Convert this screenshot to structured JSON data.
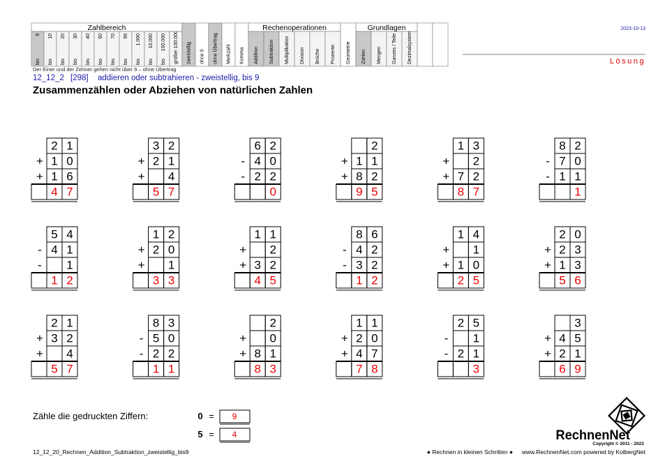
{
  "header": {
    "sections": [
      {
        "title": "Zahlbereich",
        "columns": [
          {
            "prefix": "bis",
            "label": "9",
            "active": true
          },
          {
            "prefix": "bis",
            "label": "10"
          },
          {
            "prefix": "bis",
            "label": "20"
          },
          {
            "prefix": "bis",
            "label": "30"
          },
          {
            "prefix": "bis",
            "label": "40"
          },
          {
            "prefix": "bis",
            "label": "50"
          },
          {
            "prefix": "bis",
            "label": "70"
          },
          {
            "prefix": "bis",
            "label": "99"
          },
          {
            "prefix": "bis",
            "label": "1.000"
          },
          {
            "prefix": "bis",
            "label": "10.000"
          },
          {
            "prefix": "bis",
            "label": "100.000"
          },
          {
            "label": "größer 100.000"
          }
        ]
      },
      {
        "columns": [
          {
            "label": "zweistellig",
            "active": true
          },
          {
            "label": "ohne 0"
          },
          {
            "label": "ohne Übertrag",
            "active": true
          },
          {
            "label": "Merkzahl"
          },
          {
            "label": "Komma"
          }
        ]
      },
      {
        "title": "Rechenoperationen",
        "columns": [
          {
            "label": "Addition",
            "active": true
          },
          {
            "label": "Subtraktion",
            "active": true
          },
          {
            "label": "Multiplikation"
          },
          {
            "label": "Division"
          },
          {
            "label": "Brüche"
          },
          {
            "label": "Prozente"
          }
        ]
      },
      {
        "columns": [
          {
            "label": "Geometrie"
          }
        ]
      },
      {
        "title": "Grundlagen",
        "columns": [
          {
            "label": "Zahlen",
            "active": true
          },
          {
            "label": "Mengen"
          },
          {
            "label": "Ganzes / Teile"
          },
          {
            "label": "Dezimalsystem"
          }
        ]
      }
    ],
    "date": "2023-10-13",
    "solution": "Lösung",
    "note": "Der Einer und der Zehner gehen nicht über 9 – ohne Übertrag",
    "code": "12_12_2",
    "number": "[298]",
    "topic": "addieren oder subtrahieren - zweistellig, bis 9",
    "title": "Zusammenzählen oder Abziehen von natürlichen Zahlen"
  },
  "problems": [
    {
      "lines": [
        {
          "digits": [
            2,
            1
          ]
        },
        {
          "op": "+",
          "digits": [
            1,
            0
          ]
        },
        {
          "op": "+",
          "digits": [
            1,
            6
          ]
        }
      ],
      "result": [
        4,
        7
      ]
    },
    {
      "lines": [
        {
          "digits": [
            3,
            2
          ]
        },
        {
          "op": "+",
          "digits": [
            2,
            1
          ]
        },
        {
          "op": "+",
          "digits": [
            null,
            4
          ]
        }
      ],
      "result": [
        5,
        7
      ]
    },
    {
      "lines": [
        {
          "digits": [
            6,
            2
          ]
        },
        {
          "op": "-",
          "digits": [
            4,
            0
          ]
        },
        {
          "op": "-",
          "digits": [
            2,
            2
          ]
        }
      ],
      "result": [
        null,
        0
      ]
    },
    {
      "lines": [
        {
          "digits": [
            null,
            2
          ]
        },
        {
          "op": "+",
          "digits": [
            1,
            1
          ]
        },
        {
          "op": "+",
          "digits": [
            8,
            2
          ]
        }
      ],
      "result": [
        9,
        5
      ]
    },
    {
      "lines": [
        {
          "digits": [
            1,
            3
          ]
        },
        {
          "op": "+",
          "digits": [
            null,
            2
          ]
        },
        {
          "op": "+",
          "digits": [
            7,
            2
          ]
        }
      ],
      "result": [
        8,
        7
      ]
    },
    {
      "lines": [
        {
          "digits": [
            8,
            2
          ]
        },
        {
          "op": "-",
          "digits": [
            7,
            0
          ]
        },
        {
          "op": "-",
          "digits": [
            1,
            1
          ]
        }
      ],
      "result": [
        null,
        1
      ]
    },
    {
      "lines": [
        {
          "digits": [
            5,
            4
          ]
        },
        {
          "op": "-",
          "digits": [
            4,
            1
          ]
        },
        {
          "op": "-",
          "digits": [
            null,
            1
          ]
        }
      ],
      "result": [
        1,
        2
      ]
    },
    {
      "lines": [
        {
          "digits": [
            1,
            2
          ]
        },
        {
          "op": "+",
          "digits": [
            2,
            0
          ]
        },
        {
          "op": "+",
          "digits": [
            null,
            1
          ]
        }
      ],
      "result": [
        3,
        3
      ]
    },
    {
      "lines": [
        {
          "digits": [
            1,
            1
          ]
        },
        {
          "op": "+",
          "digits": [
            null,
            2
          ]
        },
        {
          "op": "+",
          "digits": [
            3,
            2
          ]
        }
      ],
      "result": [
        4,
        5
      ]
    },
    {
      "lines": [
        {
          "digits": [
            8,
            6
          ]
        },
        {
          "op": "-",
          "digits": [
            4,
            2
          ]
        },
        {
          "op": "-",
          "digits": [
            3,
            2
          ]
        }
      ],
      "result": [
        1,
        2
      ]
    },
    {
      "lines": [
        {
          "digits": [
            1,
            4
          ]
        },
        {
          "op": "+",
          "digits": [
            null,
            1
          ]
        },
        {
          "op": "+",
          "digits": [
            1,
            0
          ]
        }
      ],
      "result": [
        2,
        5
      ]
    },
    {
      "lines": [
        {
          "digits": [
            2,
            0
          ]
        },
        {
          "op": "+",
          "digits": [
            2,
            3
          ]
        },
        {
          "op": "+",
          "digits": [
            1,
            3
          ]
        }
      ],
      "result": [
        5,
        6
      ]
    },
    {
      "lines": [
        {
          "digits": [
            2,
            1
          ]
        },
        {
          "op": "+",
          "digits": [
            3,
            2
          ]
        },
        {
          "op": "+",
          "digits": [
            null,
            4
          ]
        }
      ],
      "result": [
        5,
        7
      ]
    },
    {
      "lines": [
        {
          "digits": [
            8,
            3
          ]
        },
        {
          "op": "-",
          "digits": [
            5,
            0
          ]
        },
        {
          "op": "-",
          "digits": [
            2,
            2
          ]
        }
      ],
      "result": [
        1,
        1
      ]
    },
    {
      "lines": [
        {
          "digits": [
            null,
            2
          ]
        },
        {
          "op": "+",
          "digits": [
            null,
            0
          ]
        },
        {
          "op": "+",
          "digits": [
            8,
            1
          ]
        }
      ],
      "result": [
        8,
        3
      ]
    },
    {
      "lines": [
        {
          "digits": [
            1,
            1
          ]
        },
        {
          "op": "+",
          "digits": [
            2,
            0
          ]
        },
        {
          "op": "+",
          "digits": [
            4,
            7
          ]
        }
      ],
      "result": [
        7,
        8
      ]
    },
    {
      "lines": [
        {
          "digits": [
            2,
            5
          ]
        },
        {
          "op": "-",
          "digits": [
            null,
            1
          ]
        },
        {
          "op": "-",
          "digits": [
            2,
            1
          ]
        }
      ],
      "result": [
        null,
        3
      ]
    },
    {
      "lines": [
        {
          "digits": [
            null,
            3
          ]
        },
        {
          "op": "+",
          "digits": [
            4,
            5
          ]
        },
        {
          "op": "+",
          "digits": [
            2,
            1
          ]
        }
      ],
      "result": [
        6,
        9
      ]
    }
  ],
  "count": {
    "prompt": "Zähle die gedruckten Ziffern:",
    "equals": "=",
    "items": [
      {
        "digit": "0",
        "answer": "9"
      },
      {
        "digit": "5",
        "answer": "4"
      }
    ]
  },
  "logo": {
    "name": "RechnenNet",
    "copyright": "Copyright © 2011 - 2023"
  },
  "footer": {
    "file": "12_12_20_Rechnen_Addition_Subtraktion_zweistellig_bis9",
    "motto": "● Rechnen in kleinen Schritten ●",
    "site": "www.RechnenNet.com powered by KolbergNet"
  }
}
